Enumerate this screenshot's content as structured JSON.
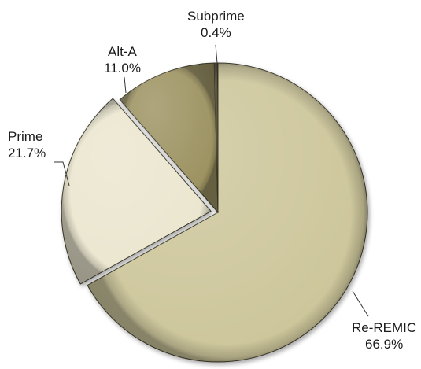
{
  "chart_data": {
    "type": "pie",
    "title": "",
    "start_angle_deg": 0,
    "direction": "clockwise",
    "slices": [
      {
        "name": "Re-REMIC",
        "value": 66.9,
        "label": "66.9%",
        "color": "#cdc69b"
      },
      {
        "name": "Prime",
        "value": 21.7,
        "label": "21.7%",
        "color": "#ebe6cf"
      },
      {
        "name": "Alt-A",
        "value": 11.0,
        "label": "11.0%",
        "color": "#9c9261"
      },
      {
        "name": "Subprime",
        "value": 0.4,
        "label": "0.4%",
        "color": "#4a4530"
      }
    ],
    "legend": "none",
    "labels": "outside with leader lines"
  }
}
